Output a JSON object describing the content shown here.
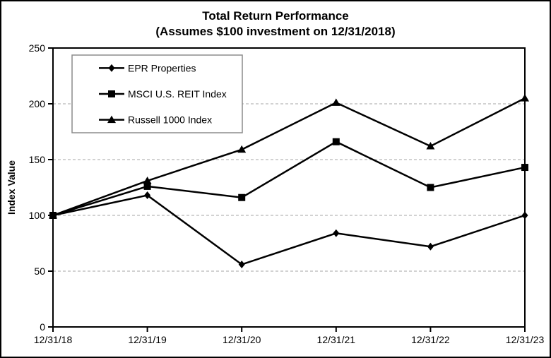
{
  "figure": {
    "title": "Total Return Performance",
    "subtitle": "(Assumes $100 investment on 12/31/2018)"
  },
  "chart_data": {
    "type": "line",
    "title": "Total Return Performance",
    "subtitle": "(Assumes $100 investment on 12/31/2018)",
    "xlabel": "",
    "ylabel": "Index Value",
    "categories": [
      "12/31/18",
      "12/31/19",
      "12/31/20",
      "12/31/21",
      "12/31/22",
      "12/31/23"
    ],
    "series": [
      {
        "name": "EPR Properties",
        "marker": "diamond",
        "values": [
          100,
          118,
          56,
          84,
          72,
          100
        ]
      },
      {
        "name": "MSCI U.S. REIT Index",
        "marker": "square",
        "values": [
          100,
          126,
          116,
          166,
          125,
          143
        ]
      },
      {
        "name": "Russell 1000 Index",
        "marker": "triangle",
        "values": [
          100,
          131,
          159,
          201,
          162,
          205
        ]
      }
    ],
    "ylim": [
      0,
      250
    ],
    "yticks": [
      0,
      50,
      100,
      150,
      200,
      250
    ],
    "grid": true,
    "legend_position": "top-left-inside",
    "line_color": "#000000",
    "text_color": "#000000",
    "grid_color": "#a6a6a6",
    "legend_border_color": "#8c8c8c",
    "background_color": "#ffffff"
  }
}
